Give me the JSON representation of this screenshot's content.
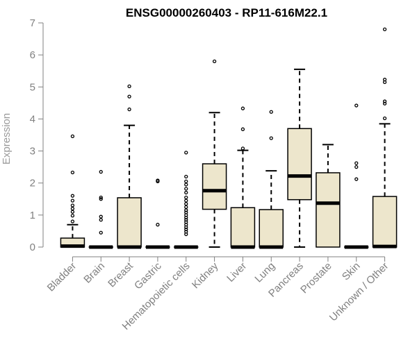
{
  "chart_data": {
    "type": "box",
    "title": "ENSG00000260403 - RP11-616M22.1",
    "ylabel": "Expression",
    "xlabel": "",
    "ylim": [
      0,
      7
    ],
    "yticks": [
      0,
      1,
      2,
      3,
      4,
      5,
      6,
      7
    ],
    "grid": false,
    "legend": "none",
    "box_color": "#ede6cc",
    "categories": [
      "Bladder",
      "Brain",
      "Breast",
      "Gastric",
      "Hematopoietic cells",
      "Kidney",
      "Liver",
      "Lung",
      "Pancreas",
      "Prostate",
      "Skin",
      "Unknown / Other"
    ],
    "boxes": [
      {
        "q1": 0,
        "median": 0.03,
        "q3": 0.28,
        "whisker_low": 0,
        "whisker_high": 0.7,
        "outliers": [
          0.8,
          0.98,
          1.1,
          1.2,
          1.3,
          1.45,
          1.6,
          2.33,
          3.46
        ]
      },
      {
        "q1": 0,
        "median": 0,
        "q3": 0,
        "whisker_low": 0,
        "whisker_high": 0,
        "outliers": [
          0.45,
          0.85,
          0.95,
          1.5,
          1.55,
          2.35
        ]
      },
      {
        "q1": 0,
        "median": 0,
        "q3": 1.54,
        "whisker_low": 0,
        "whisker_high": 3.8,
        "outliers": [
          4.3,
          4.7,
          5.02
        ]
      },
      {
        "q1": 0,
        "median": 0,
        "q3": 0,
        "whisker_low": 0,
        "whisker_high": 0,
        "outliers": [
          0.7,
          2.05,
          2.08
        ]
      },
      {
        "q1": 0,
        "median": 0,
        "q3": 0,
        "whisker_low": 0,
        "whisker_high": 0,
        "outliers": [
          0.4,
          0.48,
          0.55,
          0.62,
          0.7,
          0.78,
          0.85,
          0.92,
          1.0,
          1.08,
          1.15,
          1.25,
          1.35,
          1.45,
          1.55,
          1.7,
          1.82,
          1.95,
          2.05,
          2.2,
          2.95
        ]
      },
      {
        "q1": 1.18,
        "median": 1.76,
        "q3": 2.6,
        "whisker_low": 0,
        "whisker_high": 4.2,
        "outliers": [
          5.8
        ]
      },
      {
        "q1": 0,
        "median": 0,
        "q3": 1.23,
        "whisker_low": 0,
        "whisker_high": 3.02,
        "outliers": [
          3.08,
          3.68,
          4.33
        ]
      },
      {
        "q1": 0,
        "median": 0,
        "q3": 1.17,
        "whisker_low": 0,
        "whisker_high": 2.38,
        "outliers": [
          3.4,
          4.22
        ]
      },
      {
        "q1": 1.48,
        "median": 2.22,
        "q3": 3.7,
        "whisker_low": 0,
        "whisker_high": 5.55,
        "outliers": []
      },
      {
        "q1": 0,
        "median": 1.37,
        "q3": 2.32,
        "whisker_low": 0,
        "whisker_high": 3.2,
        "outliers": []
      },
      {
        "q1": 0,
        "median": 0,
        "q3": 0,
        "whisker_low": 0,
        "whisker_high": 0,
        "outliers": [
          2.12,
          2.5,
          2.62,
          4.42
        ]
      },
      {
        "q1": 0,
        "median": 0.02,
        "q3": 1.58,
        "whisker_low": 0,
        "whisker_high": 3.85,
        "outliers": [
          4.02,
          4.48,
          4.55,
          5.15,
          5.23,
          6.8
        ]
      }
    ]
  }
}
